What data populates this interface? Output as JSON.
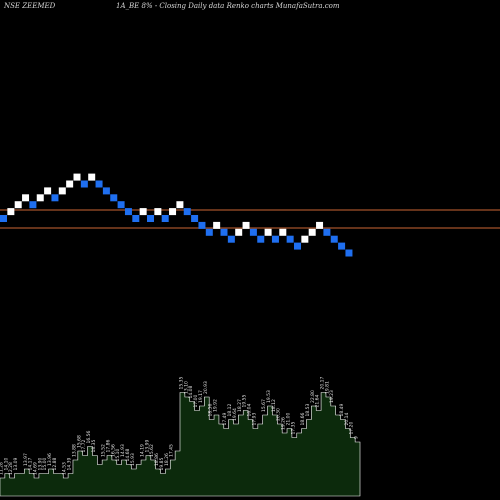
{
  "header": {
    "left": "NSE ZEEMED",
    "right": "1A_BE 8% - Closing Daily data Renko charts MunafaSutra.com"
  },
  "colors": {
    "background": "#000000",
    "up_brick": "#ffffff",
    "down_brick": "#1f6ff0",
    "reference_line": "#cc6633",
    "volume_fill": "#0c2a0c",
    "volume_stroke": "#ffffff"
  },
  "chart_data": [
    {
      "type": "renko",
      "brick_direction": [
        "down",
        "up",
        "up",
        "up",
        "down",
        "up",
        "up",
        "down",
        "up",
        "up",
        "up",
        "down",
        "up",
        "down",
        "down",
        "down",
        "down",
        "down",
        "down",
        "up",
        "down",
        "up",
        "down",
        "up",
        "up",
        "down",
        "down",
        "down",
        "down",
        "up",
        "down",
        "down",
        "up",
        "up",
        "down",
        "down",
        "up",
        "down",
        "up",
        "down",
        "down",
        "up",
        "up",
        "up",
        "down",
        "down",
        "down",
        "down"
      ],
      "reference_lines": [
        "upper",
        "lower"
      ],
      "grid": false
    },
    {
      "type": "bar",
      "volume_values": [
        4,
        5,
        4,
        5,
        5,
        6,
        5,
        4,
        5,
        5,
        6,
        5,
        5,
        4,
        5,
        8,
        10,
        9,
        11,
        9,
        7,
        8,
        9,
        8,
        7,
        8,
        7,
        6,
        7,
        8,
        9,
        8,
        6,
        5,
        6,
        8,
        10,
        23,
        22,
        21,
        19,
        20,
        22,
        17,
        18,
        16,
        15,
        17,
        16,
        18,
        19,
        17,
        15,
        16,
        18,
        20,
        18,
        16,
        14,
        15,
        13,
        14,
        15,
        17,
        20,
        19,
        23,
        22,
        20,
        18,
        17,
        15,
        13,
        12
      ],
      "value_labels": [
        "11.28",
        "14.10",
        "12.28",
        "13.09",
        "13.97",
        "14.17",
        "14.69",
        "13.90",
        "15.00",
        "13.96",
        "12.88",
        "14.53",
        "14.39",
        "13.88",
        "15.68",
        "17.72",
        "16.56",
        "18.35",
        "15.52",
        "17.86",
        "16.56",
        "15.10",
        "14.93",
        "14.68",
        "15.93",
        "14.19",
        "13.99",
        "15.62",
        "18.86",
        "19.85",
        "18.26",
        "17.45",
        "15.35",
        "13.10",
        "14.08",
        "17.00",
        "19.17",
        "20.93",
        "18.56",
        "19.92",
        "17.49",
        "18.12",
        "19.64",
        "18.27",
        "19.55",
        "16.04",
        "17.93",
        "15.67",
        "19.53",
        "18.12",
        "20.30",
        "19.26",
        "21.00",
        "17.35",
        "18.66",
        "18.53",
        "22.80",
        "21.64",
        "20.17",
        "19.81",
        "19.23",
        "18.49",
        "20.14",
        "17.20",
        "9"
      ]
    }
  ]
}
